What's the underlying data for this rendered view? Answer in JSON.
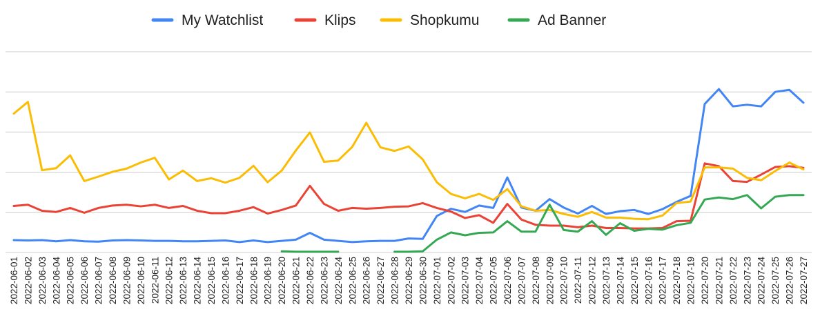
{
  "chart_data": {
    "type": "line",
    "title": "",
    "xlabel": "",
    "ylabel": "",
    "ylim": [
      0,
      50
    ],
    "grid": true,
    "legend_position": "top",
    "categories": [
      "2022-06-01",
      "2022-06-02",
      "2022-06-03",
      "2022-06-04",
      "2022-06-05",
      "2022-06-06",
      "2022-06-07",
      "2022-06-08",
      "2022-06-09",
      "2022-06-10",
      "2022-06-11",
      "2022-06-12",
      "2022-06-13",
      "2022-06-14",
      "2022-06-15",
      "2022-06-16",
      "2022-06-17",
      "2022-06-18",
      "2022-06-19",
      "2022-06-20",
      "2022-06-21",
      "2022-06-22",
      "2022-06-23",
      "2022-06-24",
      "2022-06-25",
      "2022-06-26",
      "2022-06-27",
      "2022-06-28",
      "2022-06-29",
      "2022-06-30",
      "2022-07-01",
      "2022-07-02",
      "2022-07-03",
      "2022-07-04",
      "2022-07-05",
      "2022-07-06",
      "2022-07-07",
      "2022-07-08",
      "2022-07-09",
      "2022-07-10",
      "2022-07-11",
      "2022-07-12",
      "2022-07-13",
      "2022-07-14",
      "2022-07-15",
      "2022-07-16",
      "2022-07-17",
      "2022-07-18",
      "2022-07-19",
      "2022-07-20",
      "2022-07-21",
      "2022-07-22",
      "2022-07-23",
      "2022-07-24",
      "2022-07-25",
      "2022-07-26",
      "2022-07-27"
    ],
    "series": [
      {
        "name": "My Watchlist",
        "color": "#4285f4",
        "values": [
          3.1,
          3.0,
          3.1,
          2.8,
          3.1,
          2.8,
          2.7,
          3.0,
          3.1,
          3.0,
          2.9,
          2.9,
          2.8,
          2.8,
          2.9,
          3.0,
          2.6,
          3.0,
          2.6,
          2.9,
          3.2,
          4.9,
          3.2,
          2.9,
          2.6,
          2.8,
          2.9,
          2.9,
          3.5,
          3.4,
          9.1,
          10.9,
          10.1,
          11.7,
          11.1,
          18.7,
          11.2,
          10.4,
          13.3,
          11.2,
          9.7,
          11.6,
          9.6,
          10.3,
          10.6,
          9.6,
          10.8,
          12.6,
          14.1,
          37.0,
          40.7,
          36.4,
          36.8,
          36.4,
          40.0,
          40.5,
          37.3
        ]
      },
      {
        "name": "Klips",
        "color": "#ea4335",
        "values": [
          11.6,
          11.9,
          10.4,
          10.1,
          11.1,
          9.9,
          11.1,
          11.7,
          11.9,
          11.5,
          11.9,
          11.1,
          11.6,
          10.4,
          9.8,
          9.8,
          10.4,
          11.3,
          9.7,
          10.6,
          11.7,
          16.6,
          12.1,
          10.4,
          11.1,
          10.9,
          11.1,
          11.4,
          11.5,
          12.3,
          11.1,
          10.2,
          8.6,
          9.3,
          7.4,
          12.1,
          8.2,
          6.9,
          6.7,
          6.7,
          6.3,
          6.7,
          6.1,
          6.1,
          6.0,
          6.0,
          6.1,
          7.8,
          7.9,
          22.2,
          21.5,
          17.8,
          17.6,
          19.4,
          21.3,
          21.5,
          21.1
        ]
      },
      {
        "name": "Shopkumu",
        "color": "#fbbc04",
        "values": [
          34.6,
          37.5,
          20.5,
          21.0,
          24.2,
          17.8,
          18.9,
          20.1,
          20.9,
          22.4,
          23.6,
          18.2,
          20.4,
          17.8,
          18.5,
          17.4,
          18.6,
          21.6,
          17.5,
          20.4,
          25.4,
          29.9,
          22.6,
          22.9,
          26.3,
          32.3,
          26.2,
          25.3,
          26.4,
          23.2,
          17.5,
          14.6,
          13.5,
          14.6,
          13.1,
          15.8,
          11.5,
          10.4,
          10.6,
          9.6,
          8.9,
          10.1,
          8.7,
          8.7,
          8.4,
          8.3,
          9.2,
          12.3,
          12.7,
          21.2,
          21.2,
          20.9,
          18.6,
          18.0,
          20.3,
          22.4,
          20.7
        ]
      },
      {
        "name": "Ad Banner",
        "color": "#34a853",
        "values": [
          null,
          null,
          null,
          null,
          null,
          null,
          null,
          null,
          null,
          null,
          null,
          null,
          null,
          null,
          null,
          null,
          null,
          null,
          null,
          0.3,
          0.2,
          0.2,
          0.2,
          0.2,
          null,
          null,
          null,
          0.2,
          0.2,
          0.3,
          3.2,
          5.0,
          4.3,
          4.9,
          5.0,
          7.8,
          5.2,
          5.2,
          11.9,
          5.6,
          5.2,
          7.8,
          4.4,
          7.3,
          5.4,
          5.9,
          5.7,
          6.8,
          7.4,
          13.2,
          13.7,
          13.3,
          14.3,
          11.0,
          13.9,
          14.3,
          14.3
        ]
      }
    ]
  }
}
